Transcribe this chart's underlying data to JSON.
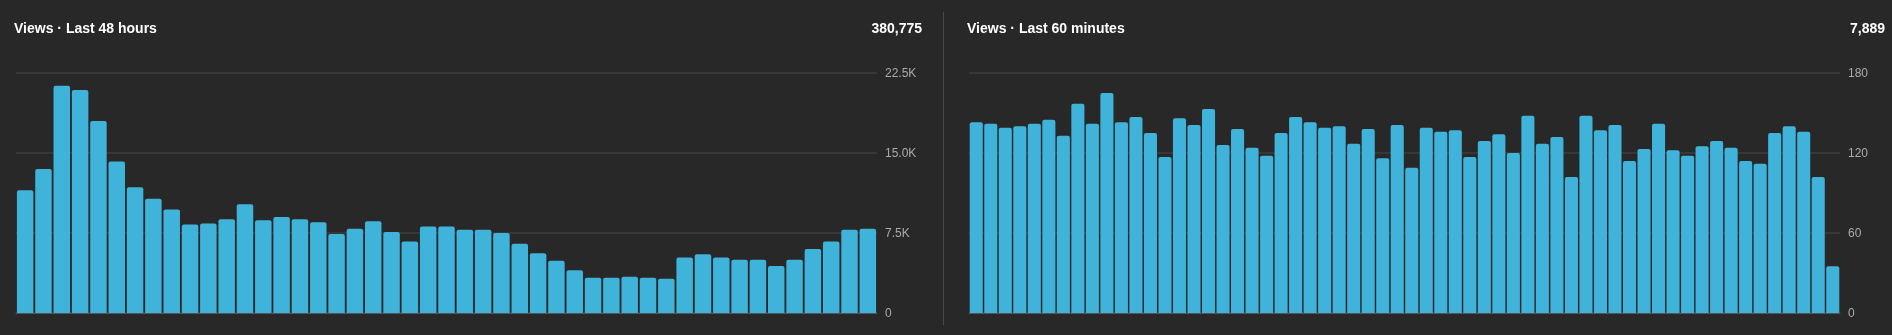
{
  "chart_data": [
    {
      "type": "bar",
      "title": "Views · Last 48 hours",
      "annotations": [
        "380,775"
      ],
      "categories": [
        null,
        null,
        null,
        null,
        null,
        null,
        null,
        null,
        null,
        null,
        null,
        null,
        null,
        null,
        null,
        null,
        null,
        null,
        null,
        null,
        null,
        null,
        null,
        null,
        null,
        null,
        null,
        null,
        null,
        null,
        null,
        null,
        null,
        null,
        null,
        null,
        null,
        null,
        null,
        null,
        null,
        null,
        null,
        null,
        null,
        null,
        null
      ],
      "values": [
        11500,
        13500,
        21300,
        20900,
        18000,
        14200,
        11800,
        10700,
        9700,
        8300,
        8400,
        8800,
        10200,
        8700,
        9000,
        8800,
        8500,
        7400,
        7900,
        8600,
        7600,
        6700,
        8100,
        8100,
        7800,
        7800,
        7500,
        6500,
        5600,
        4900,
        4000,
        3300,
        3300,
        3400,
        3300,
        3200,
        5200,
        5500,
        5200,
        5000,
        5000,
        4400,
        5000,
        6000,
        6700,
        7800,
        7900
      ],
      "color": "#40b3db",
      "ylim": [
        0,
        22500
      ],
      "yticks": [
        0,
        {
          "value": 7500,
          "label": "7.5K"
        },
        {
          "value": 15000,
          "label": "15.0K"
        },
        {
          "value": 22500,
          "label": "22.5K"
        }
      ],
      "grid": "y",
      "tick_labels": "y"
    },
    {
      "type": "bar",
      "title": "Views · Last 60 minutes",
      "annotations": [
        "7,889"
      ],
      "categories": [
        null,
        null,
        null,
        null,
        null,
        null,
        null,
        null,
        null,
        null,
        null,
        null,
        null,
        null,
        null,
        null,
        null,
        null,
        null,
        null,
        null,
        null,
        null,
        null,
        null,
        null,
        null,
        null,
        null,
        null,
        null,
        null,
        null,
        null,
        null,
        null,
        null,
        null,
        null,
        null,
        null,
        null,
        null,
        null,
        null,
        null,
        null,
        null,
        null,
        null,
        null,
        null,
        null,
        null,
        null,
        null,
        null,
        null,
        null,
        null
      ],
      "values": [
        143,
        142,
        139,
        140,
        142,
        145,
        133,
        157,
        142,
        165,
        143,
        147,
        135,
        117,
        146,
        141,
        153,
        126,
        138,
        124,
        118,
        135,
        147,
        143,
        139,
        140,
        127,
        138,
        116,
        141,
        109,
        139,
        136,
        137,
        117,
        129,
        134,
        120,
        148,
        127,
        132,
        102,
        148,
        137,
        141,
        114,
        123,
        142,
        122,
        118,
        125,
        129,
        124,
        114,
        112,
        135,
        140,
        136,
        102,
        35
      ],
      "color": "#40b3db",
      "ylim": [
        0,
        180
      ],
      "yticks": [
        0,
        60,
        120,
        180
      ],
      "grid": "y",
      "tick_labels": "y"
    }
  ]
}
